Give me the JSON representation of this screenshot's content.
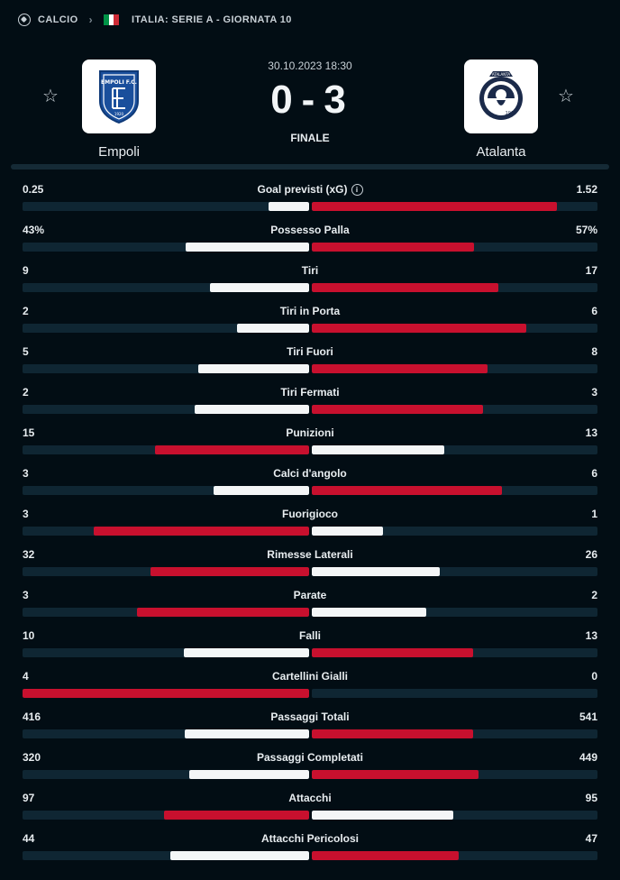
{
  "breadcrumb": {
    "sport": "CALCIO",
    "competition": "ITALIA: SERIE A - GIORNATA 10"
  },
  "flag_colors": [
    "#009246",
    "#ffffff",
    "#ce2b37"
  ],
  "match": {
    "date": "30.10.2023 18:30",
    "home_score": "0",
    "away_score": "3",
    "separator": "-",
    "status": "FINALE",
    "home_team": "Empoli",
    "away_team": "Atalanta",
    "home_logo_text": "EMPOLI F.C.",
    "home_logo_year": "1920",
    "away_logo_text": "ATALANTA",
    "away_logo_year": "1907"
  },
  "colors": {
    "highlight": "#c8102e",
    "muted": "#f4f6f7",
    "track": "#0f2633"
  },
  "stats": [
    {
      "label": "Goal previsti (xG)",
      "home": "0.25",
      "away": "1.52",
      "home_val": 0.25,
      "away_val": 1.52,
      "info": true
    },
    {
      "label": "Possesso Palla",
      "home": "43%",
      "away": "57%",
      "home_val": 43,
      "away_val": 57
    },
    {
      "label": "Tiri",
      "home": "9",
      "away": "17",
      "home_val": 9,
      "away_val": 17
    },
    {
      "label": "Tiri in Porta",
      "home": "2",
      "away": "6",
      "home_val": 2,
      "away_val": 6
    },
    {
      "label": "Tiri Fuori",
      "home": "5",
      "away": "8",
      "home_val": 5,
      "away_val": 8
    },
    {
      "label": "Tiri Fermati",
      "home": "2",
      "away": "3",
      "home_val": 2,
      "away_val": 3
    },
    {
      "label": "Punizioni",
      "home": "15",
      "away": "13",
      "home_val": 15,
      "away_val": 13
    },
    {
      "label": "Calci d'angolo",
      "home": "3",
      "away": "6",
      "home_val": 3,
      "away_val": 6
    },
    {
      "label": "Fuorigioco",
      "home": "3",
      "away": "1",
      "home_val": 3,
      "away_val": 1
    },
    {
      "label": "Rimesse Laterali",
      "home": "32",
      "away": "26",
      "home_val": 32,
      "away_val": 26
    },
    {
      "label": "Parate",
      "home": "3",
      "away": "2",
      "home_val": 3,
      "away_val": 2
    },
    {
      "label": "Falli",
      "home": "10",
      "away": "13",
      "home_val": 10,
      "away_val": 13
    },
    {
      "label": "Cartellini Gialli",
      "home": "4",
      "away": "0",
      "home_val": 4,
      "away_val": 0
    },
    {
      "label": "Passaggi Totali",
      "home": "416",
      "away": "541",
      "home_val": 416,
      "away_val": 541
    },
    {
      "label": "Passaggi Completati",
      "home": "320",
      "away": "449",
      "home_val": 320,
      "away_val": 449
    },
    {
      "label": "Attacchi",
      "home": "97",
      "away": "95",
      "home_val": 97,
      "away_val": 95
    },
    {
      "label": "Attacchi Pericolosi",
      "home": "44",
      "away": "47",
      "home_val": 44,
      "away_val": 47
    }
  ]
}
